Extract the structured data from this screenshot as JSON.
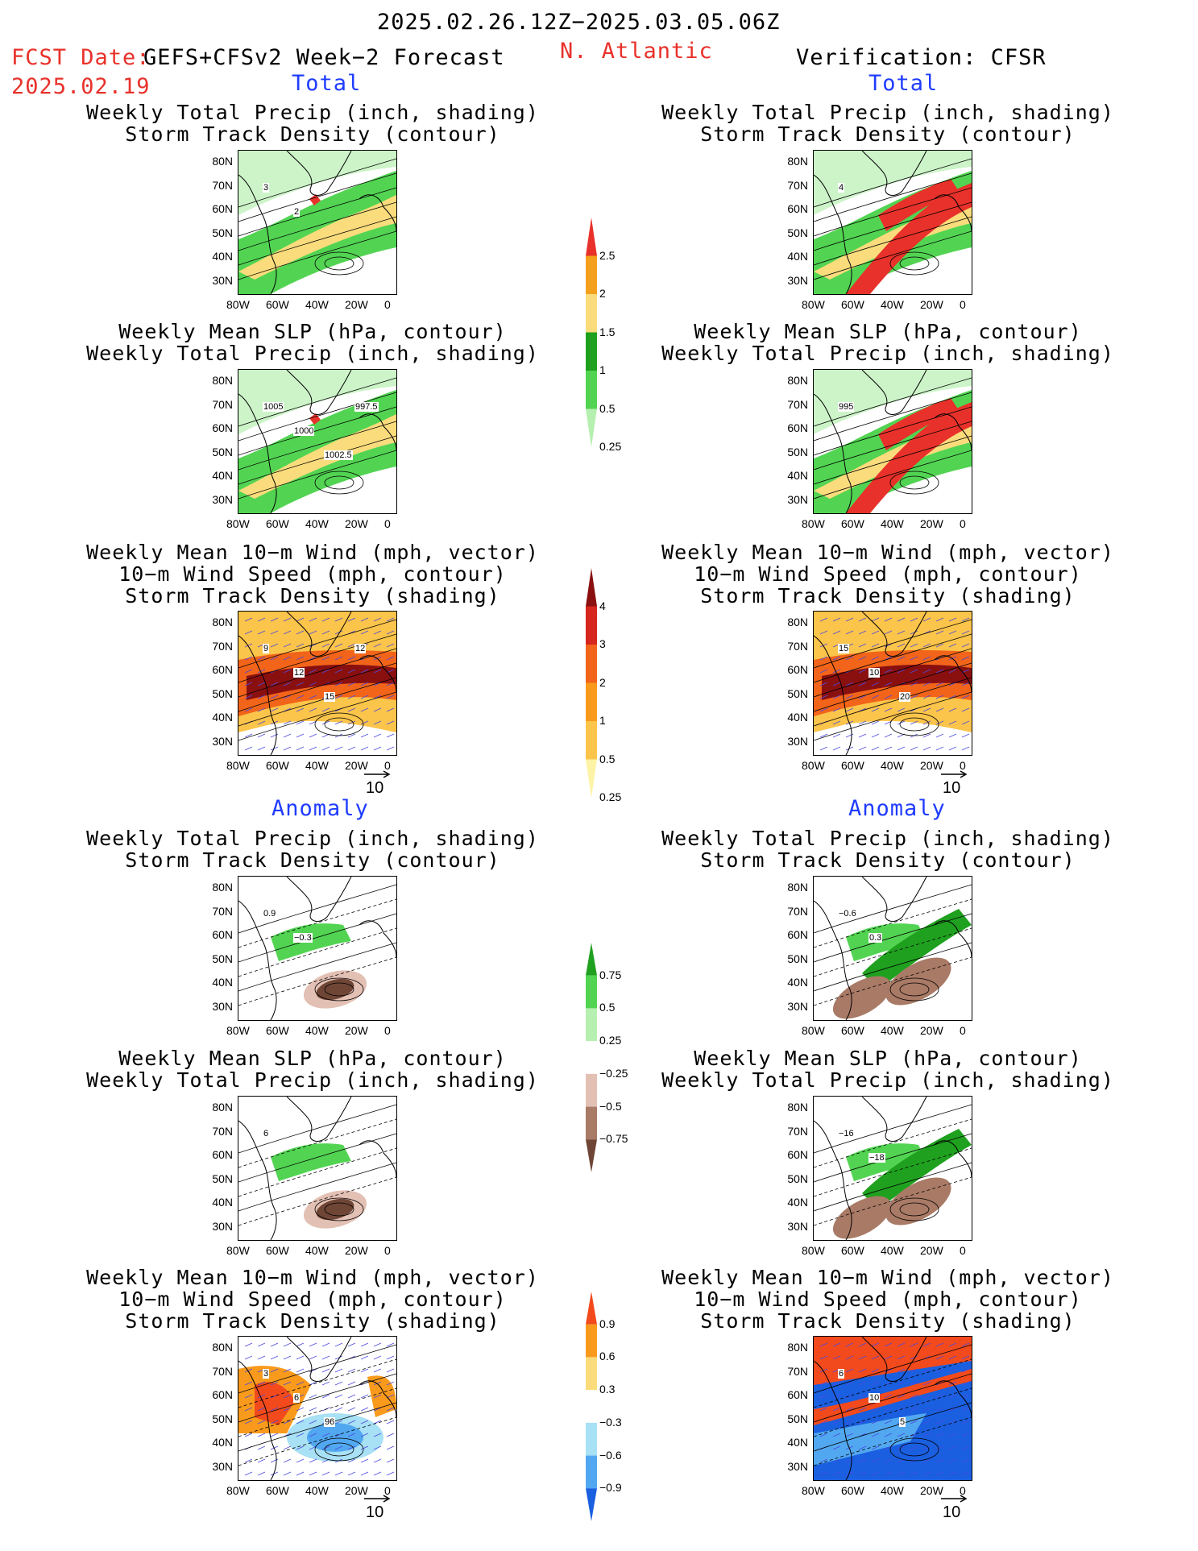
{
  "header": {
    "date_range": "2025.02.26.12Z−2025.03.05.06Z",
    "fcst_label": "FCST Date:",
    "fcst_product": "GEFS+CFSv2 Week−2 Forecast",
    "fcst_date": "2025.02.19",
    "region": "N. Atlantic",
    "verification": "Verification: CFSR"
  },
  "sections": {
    "total": "Total",
    "anomaly": "Anomaly"
  },
  "panel_titles": {
    "precip_storm": [
      "Weekly Total Precip (inch, shading)",
      "Storm Track Density (contour)"
    ],
    "slp_precip": [
      "Weekly Mean SLP (hPa, contour)",
      "Weekly Total Precip (inch, shading)"
    ],
    "wind_storm": [
      "Weekly Mean 10−m Wind (mph, vector)",
      "10−m Wind Speed (mph, contour)",
      "Storm Track Density (shading)"
    ]
  },
  "axes": {
    "lat_labels": [
      "80N",
      "70N",
      "60N",
      "50N",
      "40N",
      "30N"
    ],
    "lon_labels": [
      "80W",
      "60W",
      "40W",
      "20W",
      "0"
    ]
  },
  "vector_ref": "10",
  "colorbars": {
    "precip_total": {
      "labels": [
        "2.5",
        "2",
        "1.5",
        "1",
        "0.5",
        "0.25"
      ],
      "colors": [
        "#e8312a",
        "#f5a01d",
        "#fbdc7c",
        "#1fa11f",
        "#52d452",
        "#b6f0b0"
      ]
    },
    "storm_total": {
      "labels": [
        "4",
        "3",
        "2",
        "1",
        "0.5",
        "0.25"
      ],
      "colors": [
        "#8a1010",
        "#d7261e",
        "#f2641a",
        "#f99a1c",
        "#fbc44a",
        "#fdf3a6"
      ]
    },
    "precip_anom": {
      "labels": [
        "0.75",
        "0.5",
        "0.25",
        "−0.25",
        "−0.5",
        "−0.75"
      ],
      "colors": [
        "#1fa11f",
        "#52d452",
        "#b6f0b0",
        "#ffffff",
        "#e3c0b4",
        "#a97a66",
        "#6f4636"
      ]
    },
    "storm_anom": {
      "labels": [
        "0.9",
        "0.6",
        "0.3",
        "−0.3",
        "−0.6",
        "−0.9"
      ],
      "colors": [
        "#f24a1c",
        "#f99a1c",
        "#fbdc7c",
        "#ffffff",
        "#a8e0f5",
        "#52a8f0",
        "#1a5fe0"
      ]
    }
  },
  "contour_labels": {
    "f_total_precip": [
      "3",
      "2"
    ],
    "v_total_precip": [
      "4"
    ],
    "f_total_slp": [
      "1005",
      "1000",
      "1002.5",
      "997.5"
    ],
    "v_total_slp": [
      "995"
    ],
    "f_total_wind": [
      "9",
      "12",
      "15",
      "12"
    ],
    "v_total_wind": [
      "15",
      "10",
      "20"
    ],
    "f_anom_precip": [
      "0.9",
      "−0.3"
    ],
    "v_anom_precip": [
      "−0.6",
      "0.3"
    ],
    "f_anom_slp": [
      "6"
    ],
    "v_anom_slp": [
      "−16",
      "−18"
    ],
    "f_anom_wind": [
      "3",
      "6",
      "96"
    ],
    "v_anom_wind": [
      "6",
      "10",
      "5"
    ]
  }
}
